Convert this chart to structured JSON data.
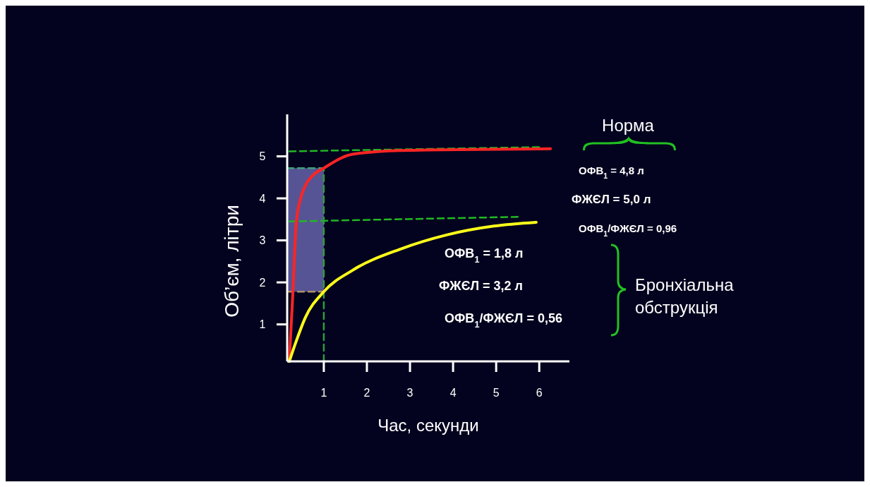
{
  "chart_data": {
    "type": "line",
    "xlabel": "Час, секунди",
    "ylabel": "Об’єм, літри",
    "xlim": [
      0.15,
      6.7
    ],
    "ylim": [
      0.12,
      6
    ],
    "xticks": [
      1,
      2,
      3,
      4,
      5,
      6
    ],
    "yticks": [
      1,
      2,
      3,
      4,
      5
    ],
    "series": [
      {
        "color": "#ff2424",
        "x": [
          0.2,
          0.28,
          0.36,
          0.45,
          0.57,
          0.75,
          1.0,
          1.67,
          2.77,
          6.26
        ],
        "values": [
          0.15,
          1.7,
          3.4,
          3.95,
          4.3,
          4.55,
          4.72,
          5.05,
          5.14,
          5.18
        ]
      },
      {
        "color": "#ffff1a",
        "x": [
          0.2,
          0.36,
          0.57,
          1.0,
          1.67,
          2.77,
          3.85,
          4.95,
          5.93
        ],
        "values": [
          0.12,
          0.6,
          1.16,
          1.78,
          2.29,
          2.79,
          3.13,
          3.34,
          3.43
        ]
      },
      {
        "color": "#22b822",
        "line_style": "dashed",
        "x": [
          0.2,
          6.0
        ],
        "values": [
          5.12,
          5.22
        ]
      },
      {
        "color": "#22b822",
        "line_style": "dashed",
        "x": [
          0.2,
          5.5
        ],
        "values": [
          3.45,
          3.56
        ]
      },
      {
        "color": "#3fa07a",
        "line_style": "dashed",
        "x": [
          0.15,
          1.0
        ],
        "values": [
          4.72,
          4.72
        ],
        "lower": [
          1.78,
          1.78
        ],
        "upper": [
          4.72,
          4.72
        ]
      },
      {
        "color": "#b0906a",
        "line_style": "dashed",
        "x": [
          0.15,
          1.0
        ],
        "values": [
          1.78,
          1.78
        ]
      },
      {
        "color": "#2e9e3a",
        "line_style": "dashed",
        "x": [
          1.0,
          1.0
        ],
        "values": [
          0.12,
          4.72
        ]
      }
    ],
    "annotations": [
      "Норма",
      "ОФВ$_{1}$ = 4,8 л",
      "ФЖЄЛ = 5,0 л",
      "ОФВ$_{1}$/ФЖЄЛ = 0,96",
      "ОФВ$_{1}$ = 1,8 л",
      "ФЖЄЛ  = 3,2 л",
      "ОФВ$_{1}$/ФЖЄЛ = 0,56",
      "Бронхіальна обструкція"
    ]
  }
}
